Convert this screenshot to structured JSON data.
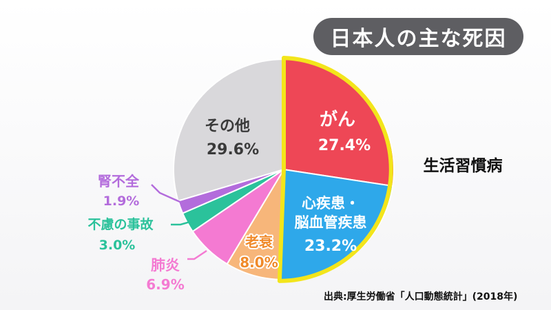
{
  "chart_data": {
    "type": "pie",
    "title": "日本人の主な死因",
    "slices": [
      {
        "label": "がん",
        "value": 27.4,
        "display": "27.4%",
        "color": "#ee4756"
      },
      {
        "label": "心疾患・脳血管疾患",
        "label_lines": [
          "心疾患・",
          "脳血管疾患"
        ],
        "value": 23.2,
        "display": "23.2%",
        "color": "#2ea8ea"
      },
      {
        "label": "老衰",
        "value": 8.0,
        "display": "8.0%",
        "color": "#f7b67a"
      },
      {
        "label": "肺炎",
        "value": 6.9,
        "display": "6.9%",
        "color": "#f47ad2"
      },
      {
        "label": "不慮の事故",
        "value": 3.0,
        "display": "3.0%",
        "color": "#2bc29b"
      },
      {
        "label": "腎不全",
        "value": 1.9,
        "display": "1.9%",
        "color": "#b36cdc"
      },
      {
        "label": "その他",
        "value": 29.6,
        "display": "29.6%",
        "color": "#d9d8db"
      }
    ],
    "group_label": "生活習慣病",
    "group_members": [
      "がん",
      "心疾患・脳血管疾患"
    ],
    "highlight_color": "#f3e51b"
  },
  "source": "出典:厚生労働省「人口動態統計」(2018年)"
}
